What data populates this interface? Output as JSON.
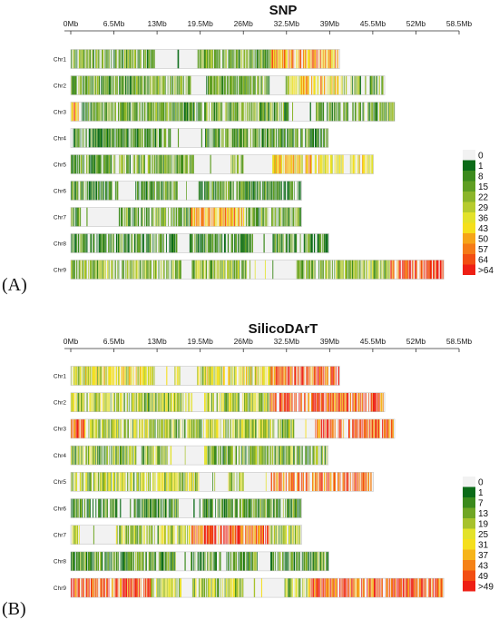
{
  "chart_data": [
    {
      "type": "heatmap",
      "panel_label": "(A)",
      "title": "SNP",
      "x_ticks": [
        "0Mb",
        "6.5Mb",
        "13Mb",
        "19.5Mb",
        "26Mb",
        "32.5Mb",
        "39Mb",
        "45.5Mb",
        "52Mb",
        "58.5Mb"
      ],
      "xlim": [
        0,
        58.5
      ],
      "x_unit": "Mb",
      "legend_placement": "right",
      "chromosomes": [
        {
          "name": "Chr1",
          "length": 40.5,
          "sparse": [
            [
              12.5,
              15.0
            ],
            [
              16.5,
              19.0
            ]
          ],
          "hot": [
            [
              30.0,
              40.5
            ]
          ],
          "hot_level": 0.55
        },
        {
          "name": "Chr2",
          "length": 47.3,
          "sparse": [
            [
              18.0,
              20.0
            ],
            [
              30.0,
              32.0
            ]
          ],
          "hot": [
            [
              33.0,
              41.0
            ]
          ],
          "hot_level": 0.45
        },
        {
          "name": "Chr3",
          "length": 48.8,
          "sparse": [
            [
              33.5,
              36.5
            ]
          ],
          "hot": [
            [
              0.0,
              1.5
            ]
          ],
          "hot_level": 0.55
        },
        {
          "name": "Chr4",
          "length": 38.8,
          "sparse": [
            [
              15.0,
              20.0
            ]
          ],
          "hot": [],
          "hot_level": 0.35
        },
        {
          "name": "Chr5",
          "length": 45.6,
          "sparse": [
            [
              19.0,
              23.5
            ],
            [
              26.0,
              29.5
            ]
          ],
          "hot": [
            [
              30.0,
              45.6
            ]
          ],
          "hot_level": 0.45
        },
        {
          "name": "Chr6",
          "length": 34.8,
          "sparse": [
            [
              7.0,
              8.5
            ],
            [
              16.0,
              19.0
            ]
          ],
          "hot": [],
          "hot_level": 0.3
        },
        {
          "name": "Chr7",
          "length": 34.8,
          "sparse": [
            [
              1.5,
              6.5
            ]
          ],
          "hot": [
            [
              18.0,
              26.0
            ]
          ],
          "hot_level": 0.6
        },
        {
          "name": "Chr8",
          "length": 38.9,
          "sparse": [
            [
              16.0,
              17.5
            ],
            [
              28.0,
              30.0
            ]
          ],
          "hot": [],
          "hot_level": 0.3
        },
        {
          "name": "Chr9",
          "length": 56.2,
          "sparse": [
            [
              16.5,
              18.0
            ],
            [
              27.0,
              34.0
            ]
          ],
          "hot": [
            [
              48.0,
              56.2
            ]
          ],
          "hot_level": 0.85
        }
      ],
      "legend": [
        "0",
        "1",
        "8",
        "15",
        "22",
        "29",
        "36",
        "43",
        "50",
        "57",
        "64",
        ">64"
      ],
      "legend_colors": [
        "#f2f2f2",
        "#0b6b18",
        "#3b8a1c",
        "#5f9e22",
        "#8bb52a",
        "#b6cb2e",
        "#e3e22a",
        "#f5df1c",
        "#f6a418",
        "#f57a16",
        "#f24e12",
        "#ee1f14"
      ]
    },
    {
      "type": "heatmap",
      "panel_label": "(B)",
      "title": "SilicoDArT",
      "x_ticks": [
        "0Mb",
        "6.5Mb",
        "13Mb",
        "19.5Mb",
        "26Mb",
        "32.5Mb",
        "39Mb",
        "45.5Mb",
        "52Mb",
        "58.5Mb"
      ],
      "xlim": [
        0,
        58.5
      ],
      "x_unit": "Mb",
      "legend_placement": "right",
      "chromosomes": [
        {
          "name": "Chr1",
          "length": 40.5,
          "sparse": [
            [
              12.5,
              15.0
            ],
            [
              16.5,
              19.0
            ]
          ],
          "hot": [
            [
              30.0,
              40.5
            ]
          ],
          "hot_level": 0.9
        },
        {
          "name": "Chr2",
          "length": 47.3,
          "sparse": [
            [
              18.0,
              20.0
            ]
          ],
          "hot": [
            [
              30.0,
              47.3
            ]
          ],
          "hot_level": 0.75
        },
        {
          "name": "Chr3",
          "length": 48.8,
          "sparse": [
            [
              33.5,
              36.5
            ]
          ],
          "hot": [
            [
              0.0,
              2.0
            ],
            [
              36.5,
              48.8
            ]
          ],
          "hot_level": 0.75
        },
        {
          "name": "Chr4",
          "length": 38.8,
          "sparse": [
            [
              15.0,
              20.0
            ]
          ],
          "hot": [],
          "hot_level": 0.4
        },
        {
          "name": "Chr5",
          "length": 45.6,
          "sparse": [
            [
              19.0,
              23.5
            ],
            [
              26.0,
              29.5
            ]
          ],
          "hot": [
            [
              30.0,
              45.6
            ]
          ],
          "hot_level": 0.7
        },
        {
          "name": "Chr6",
          "length": 34.8,
          "sparse": [
            [
              7.0,
              8.5
            ],
            [
              16.0,
              19.0
            ]
          ],
          "hot": [],
          "hot_level": 0.35
        },
        {
          "name": "Chr7",
          "length": 34.8,
          "sparse": [
            [
              1.5,
              6.5
            ]
          ],
          "hot": [
            [
              18.0,
              30.0
            ]
          ],
          "hot_level": 0.85
        },
        {
          "name": "Chr8",
          "length": 38.9,
          "sparse": [
            [
              16.0,
              17.5
            ],
            [
              28.0,
              30.0
            ]
          ],
          "hot": [],
          "hot_level": 0.3
        },
        {
          "name": "Chr9",
          "length": 56.2,
          "sparse": [
            [
              16.5,
              18.0
            ],
            [
              26.0,
              32.0
            ]
          ],
          "hot": [
            [
              0.0,
              12.0
            ],
            [
              36.0,
              56.2
            ]
          ],
          "hot_level": 0.85
        }
      ],
      "legend": [
        "0",
        "1",
        "7",
        "13",
        "19",
        "25",
        "31",
        "37",
        "43",
        "49",
        ">49"
      ],
      "legend_colors": [
        "#f2f2f2",
        "#0b6b18",
        "#3b8a1c",
        "#6fa624",
        "#a7c22c",
        "#e3e22a",
        "#f5df1c",
        "#f6b41a",
        "#f58217",
        "#f24e12",
        "#ee1f14"
      ]
    }
  ]
}
